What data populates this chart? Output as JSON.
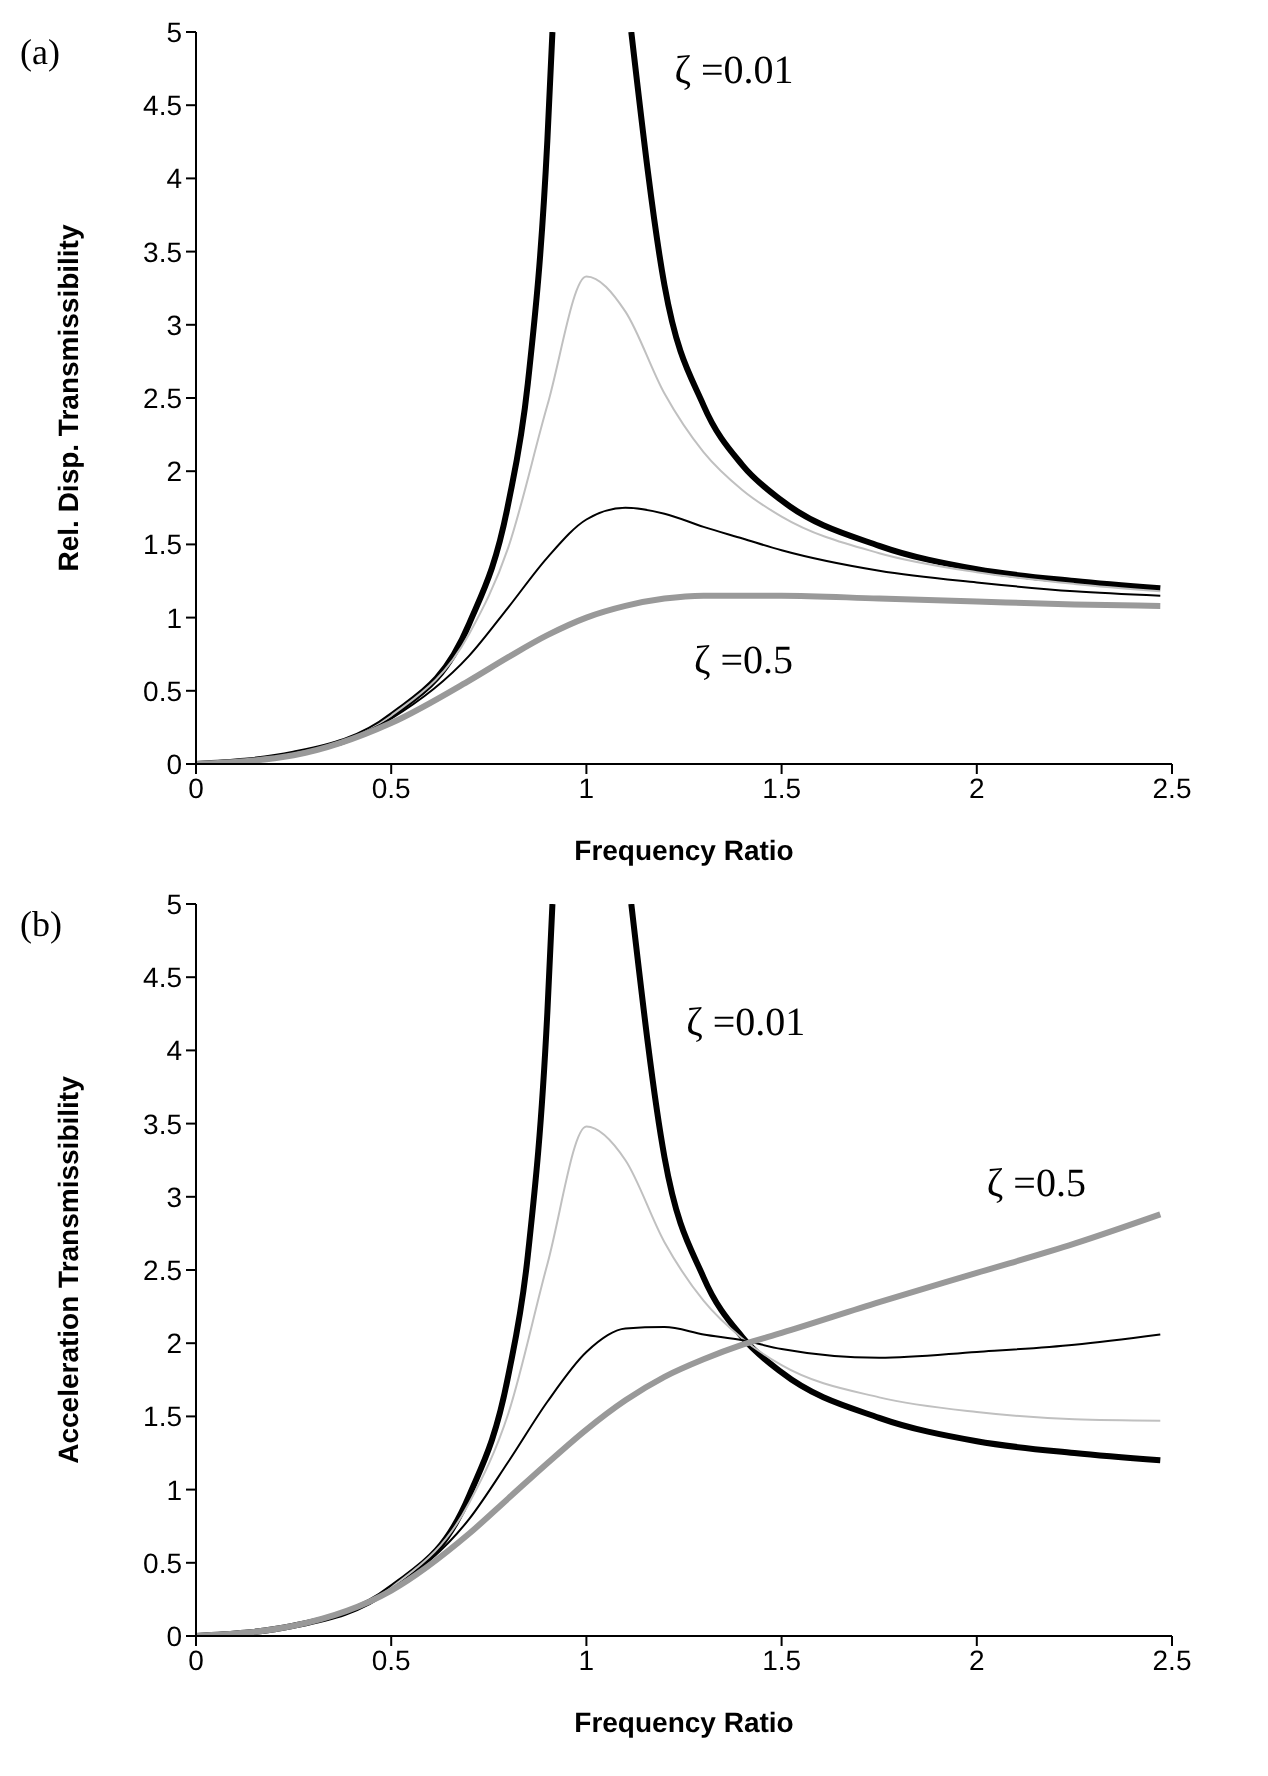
{
  "chart_data": [
    {
      "type": "line",
      "annotations": [
        "(a)"
      ],
      "xlabel": "Frequency Ratio",
      "ylabel": "Rel. Disp. Transmissibility",
      "xlim": [
        0,
        2.5
      ],
      "xticks": [
        0,
        0.5,
        1,
        1.5,
        2,
        2.5
      ],
      "ylim": [
        0,
        5
      ],
      "yticks": [
        0,
        0.5,
        1,
        1.5,
        2,
        2.5,
        3,
        3.5,
        4,
        4.5,
        5
      ],
      "grid": false,
      "legend": false,
      "marker": "none",
      "line_style": "solid",
      "series": [
        {
          "name": "ζ =0.01",
          "color": "#000000",
          "x": [
            0,
            0.25,
            0.5,
            0.7,
            0.8,
            0.85,
            0.9,
            0.913,
            1.0,
            1.115,
            1.2,
            1.3,
            1.4,
            1.5,
            1.75,
            2,
            2.25,
            2.47
          ],
          "values": [
            0,
            0.07,
            0.33,
            0.96,
            1.78,
            2.6,
            4.26,
            5,
            null,
            5,
            3.27,
            2.45,
            2.04,
            1.8,
            1.49,
            1.33,
            1.25,
            1.2
          ]
        },
        {
          "color": "#c0c0c0",
          "x": [
            0,
            0.25,
            0.5,
            0.7,
            0.8,
            0.9,
            1,
            1.1,
            1.2,
            1.3,
            1.4,
            1.5,
            1.75,
            2,
            2.25,
            2.47
          ],
          "values": [
            0,
            0.07,
            0.33,
            0.89,
            1.48,
            2.45,
            3.33,
            3.09,
            2.53,
            2.13,
            1.87,
            1.69,
            1.44,
            1.31,
            1.23,
            1.18
          ]
        },
        {
          "color": "#000000",
          "x": [
            0,
            0.25,
            0.5,
            0.7,
            0.8,
            0.9,
            1,
            1.1,
            1.2,
            1.3,
            1.4,
            1.5,
            1.75,
            2,
            2.25,
            2.47
          ],
          "values": [
            0,
            0.07,
            0.31,
            0.74,
            1.07,
            1.41,
            1.67,
            1.75,
            1.71,
            1.62,
            1.54,
            1.46,
            1.32,
            1.24,
            1.18,
            1.15
          ]
        },
        {
          "name": "ζ =0.5",
          "color": "#999999",
          "x": [
            0,
            0.25,
            0.5,
            0.7,
            0.8,
            0.9,
            1,
            1.1,
            1.2,
            1.3,
            1.4,
            1.5,
            1.75,
            2,
            2.25,
            2.47
          ],
          "values": [
            0,
            0.06,
            0.28,
            0.57,
            0.73,
            0.88,
            1.0,
            1.08,
            1.13,
            1.15,
            1.15,
            1.15,
            1.13,
            1.11,
            1.09,
            1.08
          ]
        }
      ]
    },
    {
      "type": "line",
      "annotations": [
        "(b)"
      ],
      "xlabel": "Frequency Ratio",
      "ylabel": "Acceleration Transmissibility",
      "xlim": [
        0,
        2.5
      ],
      "xticks": [
        0,
        0.5,
        1,
        1.5,
        2,
        2.5
      ],
      "ylim": [
        0,
        5
      ],
      "yticks": [
        0,
        0.5,
        1,
        1.5,
        2,
        2.5,
        3,
        3.5,
        4,
        4.5,
        5
      ],
      "grid": false,
      "legend": false,
      "marker": "none",
      "line_style": "solid",
      "series": [
        {
          "name": "ζ =0.01",
          "color": "#000000",
          "x": [
            0,
            0.25,
            0.5,
            0.7,
            0.8,
            0.85,
            0.9,
            0.913,
            1.0,
            1.115,
            1.2,
            1.3,
            1.4,
            1.5,
            1.75,
            2,
            2.25,
            2.47
          ],
          "values": [
            0,
            0.07,
            0.33,
            0.96,
            1.78,
            2.6,
            4.26,
            5,
            null,
            5,
            3.27,
            2.45,
            2.04,
            1.8,
            1.49,
            1.33,
            1.25,
            1.2
          ]
        },
        {
          "color": "#c0c0c0",
          "x": [
            0,
            0.25,
            0.5,
            0.7,
            0.8,
            0.9,
            1,
            1.1,
            1.2,
            1.3,
            1.4,
            1.5,
            1.75,
            2,
            2.25,
            2.47
          ],
          "values": [
            0,
            0.07,
            0.33,
            0.91,
            1.52,
            2.54,
            3.48,
            3.25,
            2.69,
            2.29,
            2.03,
            1.85,
            1.63,
            1.53,
            1.48,
            1.47
          ]
        },
        {
          "color": "#000000",
          "x": [
            0,
            0.25,
            0.5,
            0.7,
            0.8,
            0.9,
            1,
            1.1,
            1.2,
            1.3,
            1.4,
            1.5,
            1.75,
            2,
            2.25,
            2.47
          ],
          "values": [
            0,
            0.07,
            0.32,
            0.8,
            1.19,
            1.6,
            1.94,
            2.1,
            2.11,
            2.06,
            2.02,
            1.96,
            1.9,
            1.94,
            1.99,
            2.06
          ]
        },
        {
          "name": "ζ =0.5",
          "color": "#999999",
          "x": [
            0,
            0.25,
            0.5,
            0.7,
            0.8,
            0.9,
            1,
            1.1,
            1.2,
            1.3,
            1.4,
            1.5,
            1.75,
            2,
            2.25,
            2.47
          ],
          "values": [
            0,
            0.07,
            0.31,
            0.7,
            0.94,
            1.18,
            1.41,
            1.61,
            1.77,
            1.89,
            1.99,
            2.07,
            2.28,
            2.48,
            2.68,
            2.88
          ]
        }
      ]
    }
  ]
}
